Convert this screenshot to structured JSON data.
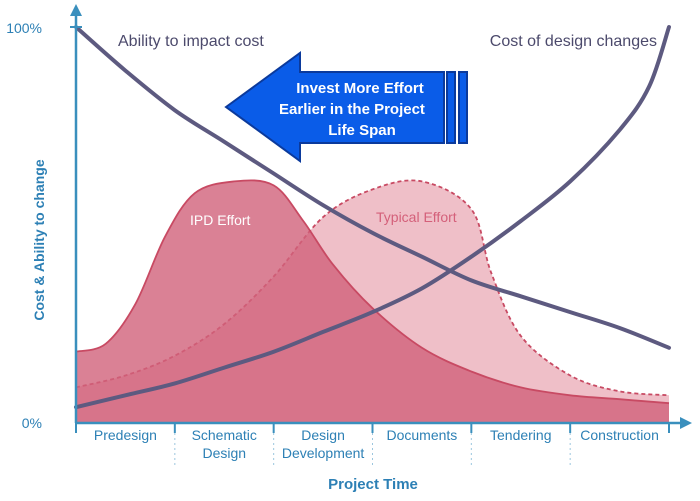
{
  "chart_data": {
    "type": "area",
    "title": "",
    "xlabel": "Project Time",
    "ylabel": "Cost & Ability to change",
    "y_tick_labels": {
      "top": "100%",
      "bottom": "0%"
    },
    "ylim": [
      0,
      100
    ],
    "grid": false,
    "x_categories": [
      "Predesign",
      "Schematic Design",
      "Design Development",
      "Documents",
      "Tendering",
      "Construction"
    ],
    "x_category_lines": [
      [
        "Predesign"
      ],
      [
        "Schematic",
        "Design"
      ],
      [
        "Design",
        "Development"
      ],
      [
        "Documents"
      ],
      [
        "Tendering"
      ],
      [
        "Construction"
      ]
    ],
    "xlim": [
      0,
      6
    ],
    "series": [
      {
        "name": "Ability to impact cost",
        "kind": "line",
        "color": "#5d5a80",
        "points": [
          [
            0,
            100
          ],
          [
            0.5,
            89
          ],
          [
            1,
            79
          ],
          [
            1.5,
            71
          ],
          [
            2,
            63
          ],
          [
            2.5,
            55
          ],
          [
            3,
            48
          ],
          [
            3.5,
            42
          ],
          [
            4,
            36
          ],
          [
            4.5,
            32
          ],
          [
            5,
            28
          ],
          [
            5.5,
            24
          ],
          [
            6,
            19
          ]
        ]
      },
      {
        "name": "Cost of design changes",
        "kind": "line",
        "color": "#5d5a80",
        "points": [
          [
            0,
            4
          ],
          [
            0.5,
            7
          ],
          [
            1,
            10
          ],
          [
            1.5,
            14
          ],
          [
            2,
            18
          ],
          [
            2.5,
            23
          ],
          [
            3,
            28
          ],
          [
            3.5,
            34
          ],
          [
            4,
            42
          ],
          [
            4.5,
            51
          ],
          [
            5,
            61
          ],
          [
            5.5,
            74
          ],
          [
            5.8,
            85
          ],
          [
            6,
            100
          ]
        ]
      },
      {
        "name": "IPD Effort",
        "kind": "area",
        "color": "#c84a63",
        "fill": "#d1627a",
        "points": [
          [
            0,
            18
          ],
          [
            0.3,
            20
          ],
          [
            0.6,
            30
          ],
          [
            0.9,
            47
          ],
          [
            1.2,
            58
          ],
          [
            1.6,
            61
          ],
          [
            2,
            60
          ],
          [
            2.3,
            51
          ],
          [
            2.6,
            40
          ],
          [
            3,
            29
          ],
          [
            3.5,
            19
          ],
          [
            4,
            13
          ],
          [
            4.5,
            9
          ],
          [
            5,
            7
          ],
          [
            5.5,
            6
          ],
          [
            6,
            5
          ]
        ]
      },
      {
        "name": "Typical Effort",
        "kind": "area",
        "color": "#c84a63",
        "fill": "#e9a9b6",
        "dashed": true,
        "points": [
          [
            0,
            9
          ],
          [
            0.5,
            12
          ],
          [
            1,
            17
          ],
          [
            1.5,
            25
          ],
          [
            2,
            37
          ],
          [
            2.5,
            52
          ],
          [
            3,
            59
          ],
          [
            3.5,
            61
          ],
          [
            4,
            54
          ],
          [
            4.2,
            38
          ],
          [
            4.5,
            22
          ],
          [
            5,
            12
          ],
          [
            5.5,
            8
          ],
          [
            6,
            7
          ]
        ]
      }
    ],
    "annotations": {
      "arrow_text": [
        "Invest More Effort",
        "Earlier in the Project",
        "Life Span"
      ],
      "arrow_color": "#0a5ce8"
    }
  }
}
